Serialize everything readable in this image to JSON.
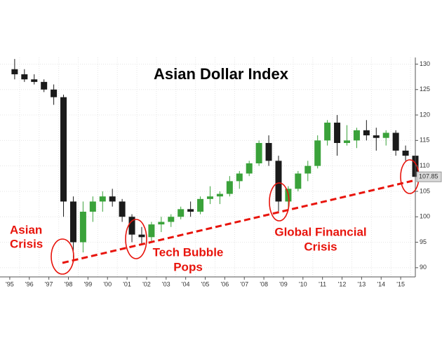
{
  "chart_data": {
    "type": "candlestick",
    "title": "Asian Dollar Index",
    "x": [
      1995.25,
      1995.75,
      1996.25,
      1996.75,
      1997.25,
      1997.75,
      1998.25,
      1998.75,
      1999.25,
      1999.75,
      2000.25,
      2000.75,
      2001.25,
      2001.75,
      2002.25,
      2002.75,
      2003.25,
      2003.75,
      2004.25,
      2004.75,
      2005.25,
      2005.75,
      2006.25,
      2006.75,
      2007.25,
      2007.75,
      2008.25,
      2008.75,
      2009.25,
      2009.75,
      2010.25,
      2010.75,
      2011.25,
      2011.75,
      2012.25,
      2012.75,
      2013.25,
      2013.75,
      2014.25,
      2014.75,
      2015.25,
      2015.75
    ],
    "open": [
      129,
      128,
      127,
      126.5,
      125,
      123.5,
      103,
      95,
      101,
      103,
      104,
      103,
      100,
      96.5,
      96,
      98.5,
      99,
      100,
      101.5,
      101,
      103.5,
      104,
      104.5,
      107,
      108.5,
      110.5,
      114.5,
      111,
      103,
      105.5,
      108.5,
      110,
      115,
      118.5,
      114.5,
      115,
      117,
      116,
      115.5,
      116.5,
      113,
      112
    ],
    "high": [
      131,
      129,
      128,
      127,
      126,
      124,
      104,
      103,
      104,
      105,
      105.5,
      103.5,
      100.5,
      98,
      99,
      100,
      100.5,
      102,
      103,
      104,
      106,
      105,
      108,
      109,
      111,
      115,
      116,
      112,
      106,
      109,
      111,
      116,
      119,
      120,
      118,
      117.5,
      119,
      117.5,
      117,
      117,
      114,
      112.5
    ],
    "low": [
      127,
      126.5,
      126,
      124.5,
      122,
      100,
      91,
      93,
      99,
      101,
      102,
      99,
      95,
      94.5,
      95,
      97,
      98,
      99.5,
      100,
      100.5,
      102.5,
      102.5,
      104,
      105.5,
      108,
      110,
      110,
      101,
      101.5,
      105,
      107,
      109.5,
      114,
      112,
      114,
      113.5,
      115,
      113,
      114,
      112,
      111,
      107
    ],
    "close": [
      128,
      127,
      126.5,
      125,
      123.5,
      103,
      95,
      101,
      103,
      104,
      103,
      100,
      96.5,
      96,
      98.5,
      99,
      100,
      101.5,
      101,
      103.5,
      104,
      104.5,
      107,
      108.5,
      110.5,
      114.5,
      111,
      103,
      105.5,
      108.5,
      110,
      115,
      118.5,
      114.5,
      115,
      117,
      116,
      115.5,
      116.5,
      113,
      112,
      107.85
    ],
    "up_color": "#3aa23a",
    "down_color": "#1a1a1a",
    "xlim": [
      1994.5,
      2015.75
    ],
    "xticks": [
      {
        "value": 1995,
        "label": "'95"
      },
      {
        "value": 1996,
        "label": "'96"
      },
      {
        "value": 1997,
        "label": "'97"
      },
      {
        "value": 1998,
        "label": "'98"
      },
      {
        "value": 1999,
        "label": "'99"
      },
      {
        "value": 2000,
        "label": "'00"
      },
      {
        "value": 2001,
        "label": "'01"
      },
      {
        "value": 2002,
        "label": "'02"
      },
      {
        "value": 2003,
        "label": "'03"
      },
      {
        "value": 2004,
        "label": "'04"
      },
      {
        "value": 2005,
        "label": "'05"
      },
      {
        "value": 2006,
        "label": "'06"
      },
      {
        "value": 2007,
        "label": "'07"
      },
      {
        "value": 2008,
        "label": "'08"
      },
      {
        "value": 2009,
        "label": "'09"
      },
      {
        "value": 2010,
        "label": "'10"
      },
      {
        "value": 2011,
        "label": "'11"
      },
      {
        "value": 2012,
        "label": "'12"
      },
      {
        "value": 2013,
        "label": "'13"
      },
      {
        "value": 2014,
        "label": "'14"
      },
      {
        "value": 2015,
        "label": "'15"
      }
    ],
    "ylim": [
      87.5,
      131.3
    ],
    "yticks": [
      90,
      95,
      100,
      105,
      110,
      115,
      120,
      125,
      130
    ],
    "grid": true,
    "annotations": [
      [
        "Asian",
        "Crisis"
      ],
      [
        "Tech Bubble",
        "Pops"
      ],
      [
        "Global Financial",
        "Crisis"
      ]
    ]
  }
}
